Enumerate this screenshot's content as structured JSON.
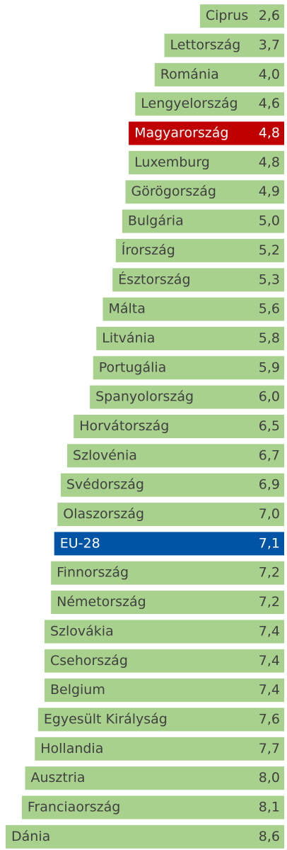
{
  "chart_data": {
    "type": "hbar",
    "categories": [
      "Ciprus",
      "Lettország",
      "Románia",
      "Lengyelország",
      "Magyarország",
      "Luxemburg",
      "Görögország",
      "Bulgária",
      "Írország",
      "Észtország",
      "Málta",
      "Litvánia",
      "Portugália",
      "Spanyolország",
      "Horvátország",
      "Szlovénia",
      "Svédország",
      "Olaszország",
      "EU-28",
      "Finnország",
      "Németország",
      "Szlovákia",
      "Csehország",
      "Belgium",
      "Egyesült Királyság",
      "Hollandia",
      "Ausztria",
      "Franciaország",
      "Dánia"
    ],
    "values": [
      2.6,
      3.7,
      4.0,
      4.6,
      4.8,
      4.8,
      4.9,
      5.0,
      5.2,
      5.3,
      5.6,
      5.8,
      5.9,
      6.0,
      6.5,
      6.7,
      6.9,
      7.0,
      7.1,
      7.2,
      7.2,
      7.4,
      7.4,
      7.4,
      7.6,
      7.7,
      8.0,
      8.1,
      8.6
    ],
    "value_labels": [
      "2,6",
      "3,7",
      "4,0",
      "4,6",
      "4,8",
      "4,8",
      "4,9",
      "5,0",
      "5,2",
      "5,3",
      "5,6",
      "5,8",
      "5,9",
      "6,0",
      "6,5",
      "6,7",
      "6,9",
      "7,0",
      "7,1",
      "7,2",
      "7,2",
      "7,4",
      "7,4",
      "7,4",
      "7,6",
      "7,7",
      "8,0",
      "8,1",
      "8,6"
    ],
    "colors": [
      "#a9d18e",
      "#a9d18e",
      "#a9d18e",
      "#a9d18e",
      "#c00000",
      "#a9d18e",
      "#a9d18e",
      "#a9d18e",
      "#a9d18e",
      "#a9d18e",
      "#a9d18e",
      "#a9d18e",
      "#a9d18e",
      "#a9d18e",
      "#a9d18e",
      "#a9d18e",
      "#a9d18e",
      "#a9d18e",
      "#0054a6",
      "#a9d18e",
      "#a9d18e",
      "#a9d18e",
      "#a9d18e",
      "#a9d18e",
      "#a9d18e",
      "#a9d18e",
      "#a9d18e",
      "#a9d18e",
      "#a9d18e"
    ]
  }
}
